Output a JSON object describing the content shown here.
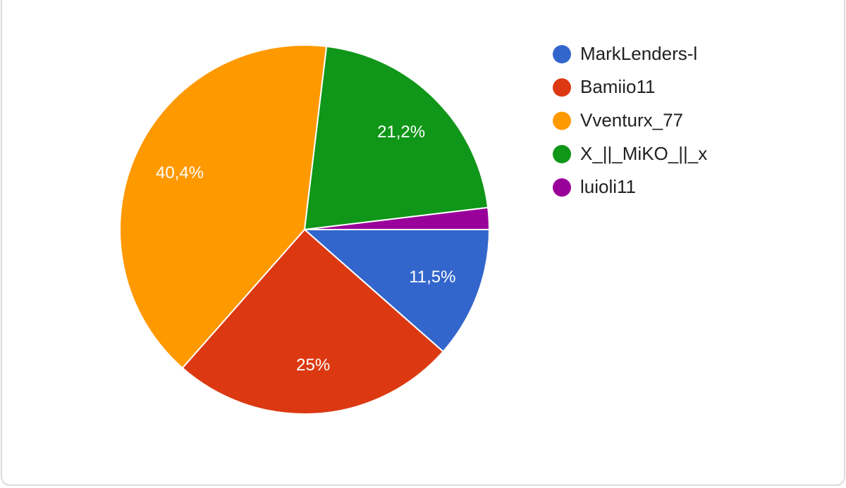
{
  "chart_data": {
    "type": "pie",
    "categories": [
      "MarkLenders-l",
      "Bamiio11",
      "Vventurx_77",
      "X_||_MiKO_||_x",
      "luioli11"
    ],
    "values": [
      11.5,
      25,
      40.4,
      21.2,
      1.9
    ],
    "value_labels": [
      "11,5%",
      "25%",
      "40,4%",
      "21,2%",
      null
    ],
    "colors": [
      "#3366cc",
      "#dc3912",
      "#ff9900",
      "#109618",
      "#990099"
    ],
    "legend": "right"
  }
}
